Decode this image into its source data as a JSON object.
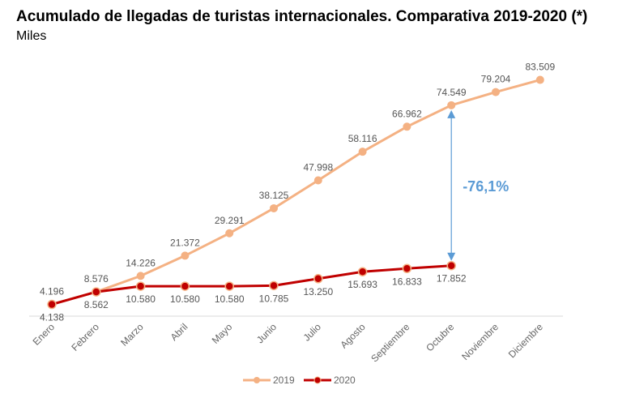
{
  "header": {
    "title": "Acumulado de llegadas de turistas internacionales. Comparativa 2019-2020 (*)",
    "subtitle": "Miles"
  },
  "chart_data": {
    "type": "line",
    "title": "Acumulado de llegadas de turistas internacionales. Comparativa 2019-2020 (*)",
    "subtitle": "Miles",
    "xlabel": "",
    "ylabel": "Miles",
    "ylim": [
      0,
      85
    ],
    "grid": false,
    "legend": "bottom-center",
    "categories": [
      "Enero",
      "Febrero",
      "Marzo",
      "Abril",
      "Mayo",
      "Junio",
      "Julio",
      "Agosto",
      "Septiembre",
      "Octubre",
      "Noviembre",
      "Diciembre"
    ],
    "series": [
      {
        "name": "2019",
        "color": "#f4b183",
        "values": [
          4.196,
          8.576,
          14.226,
          21.372,
          29.291,
          38.125,
          47.998,
          58.116,
          66.962,
          74.549,
          79.204,
          83.509
        ],
        "labels": [
          "4.196",
          "8.576",
          "14.226",
          "21.372",
          "29.291",
          "38.125",
          "47.998",
          "58.116",
          "66.962",
          "74.549",
          "79.204",
          "83.509"
        ]
      },
      {
        "name": "2020",
        "color": "#c00000",
        "values": [
          4.138,
          8.562,
          10.58,
          10.58,
          10.58,
          10.785,
          13.25,
          15.693,
          16.833,
          17.852
        ],
        "labels": [
          "4.138",
          "8.562",
          "10.580",
          "10.580",
          "10.580",
          "10.785",
          "13.250",
          "15.693",
          "16.833",
          "17.852"
        ]
      }
    ],
    "annotations": [
      {
        "text": "-76,1%",
        "category": "Octubre",
        "from": 74.549,
        "to": 17.852,
        "color": "#5b9bd5"
      }
    ]
  }
}
